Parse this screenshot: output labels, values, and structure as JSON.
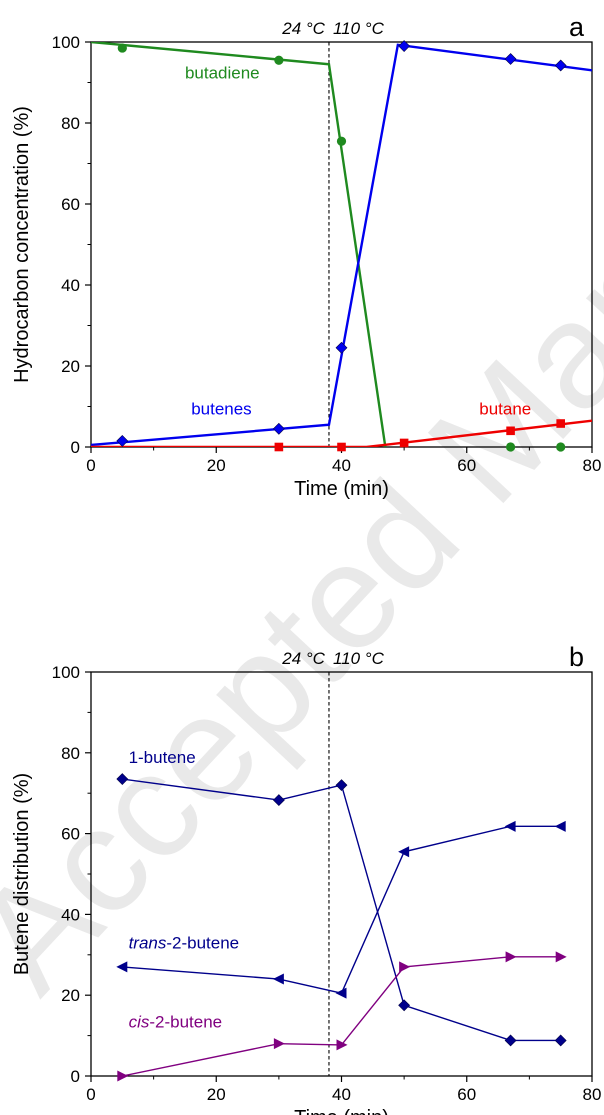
{
  "watermark": "Accepted Manuscript",
  "chart_data": [
    {
      "type": "line",
      "panel_letter": "a",
      "xlabel": "Time (min)",
      "ylabel": "Hydrocarbon concentration (%)",
      "xlim": [
        0,
        80
      ],
      "ylim": [
        0,
        100
      ],
      "xticks": [
        "0",
        "20",
        "40",
        "60",
        "80"
      ],
      "yticks": [
        "0",
        "20",
        "40",
        "60",
        "80",
        "100"
      ],
      "grid": false,
      "legend": "none",
      "divider": {
        "x": 38,
        "left_label": "24 °C",
        "right_label": "110 °C"
      },
      "series": [
        {
          "name": "butadiene",
          "color": "#1f8a1f",
          "marker": "circle",
          "points": [
            [
              5,
              98.5
            ],
            [
              30,
              95.5
            ],
            [
              40,
              75.5
            ],
            [
              67,
              0
            ],
            [
              75,
              0
            ]
          ],
          "fit": [
            [
              0,
              100
            ],
            [
              38,
              94.5
            ],
            [
              47,
              0
            ]
          ],
          "label_at": [
            15,
            91
          ]
        },
        {
          "name": "butenes",
          "color": "#0000ee",
          "marker": "diamond",
          "points": [
            [
              5,
              1.5
            ],
            [
              30,
              4.5
            ],
            [
              40,
              24.5
            ],
            [
              50,
              99
            ],
            [
              67,
              95.8
            ],
            [
              75,
              94.2
            ]
          ],
          "fit": [
            [
              0,
              0.5
            ],
            [
              38,
              5.5
            ],
            [
              49,
              99.3
            ],
            [
              80,
              93
            ]
          ],
          "label_at": [
            16,
            8
          ]
        },
        {
          "name": "butane",
          "color": "#ee0000",
          "marker": "square",
          "points": [
            [
              30,
              0
            ],
            [
              40,
              0
            ],
            [
              50,
              1
            ],
            [
              67,
              4
            ],
            [
              75,
              5.8
            ]
          ],
          "fit": [
            [
              0,
              0
            ],
            [
              44,
              0
            ],
            [
              80,
              6.5
            ]
          ],
          "label_at": [
            62,
            8
          ]
        }
      ]
    },
    {
      "type": "line",
      "panel_letter": "b",
      "xlabel": "Time (min)",
      "ylabel": "Butene distribution (%)",
      "xlim": [
        0,
        80
      ],
      "ylim": [
        0,
        100
      ],
      "xticks": [
        "0",
        "20",
        "40",
        "60",
        "80"
      ],
      "yticks": [
        "0",
        "20",
        "40",
        "60",
        "80",
        "100"
      ],
      "grid": false,
      "legend": "none",
      "divider": {
        "x": 38,
        "left_label": "24 °C",
        "right_label": "110 °C"
      },
      "series": [
        {
          "name": "1-butene",
          "italic_prefix": "",
          "color": "#00008b",
          "marker": "diamond",
          "points": [
            [
              5,
              73.5
            ],
            [
              30,
              68.3
            ],
            [
              40,
              72
            ],
            [
              50,
              17.5
            ],
            [
              67,
              8.8
            ],
            [
              75,
              8.8
            ]
          ],
          "label_at": [
            6,
            77.5
          ]
        },
        {
          "name": "-2-butene",
          "italic_prefix": "trans",
          "color": "#00008b",
          "marker": "triangle-left",
          "points": [
            [
              5,
              27
            ],
            [
              30,
              24
            ],
            [
              40,
              20.5
            ],
            [
              50,
              55.5
            ],
            [
              67,
              61.8
            ],
            [
              75,
              61.8
            ]
          ],
          "label_at": [
            6,
            31.5
          ]
        },
        {
          "name": "-2-butene",
          "italic_prefix": "cis",
          "color": "#800080",
          "marker": "triangle-right",
          "points": [
            [
              5,
              0
            ],
            [
              30,
              8
            ],
            [
              40,
              7.7
            ],
            [
              50,
              27
            ],
            [
              67,
              29.5
            ],
            [
              75,
              29.5
            ]
          ],
          "label_at": [
            6,
            12
          ]
        }
      ]
    }
  ]
}
